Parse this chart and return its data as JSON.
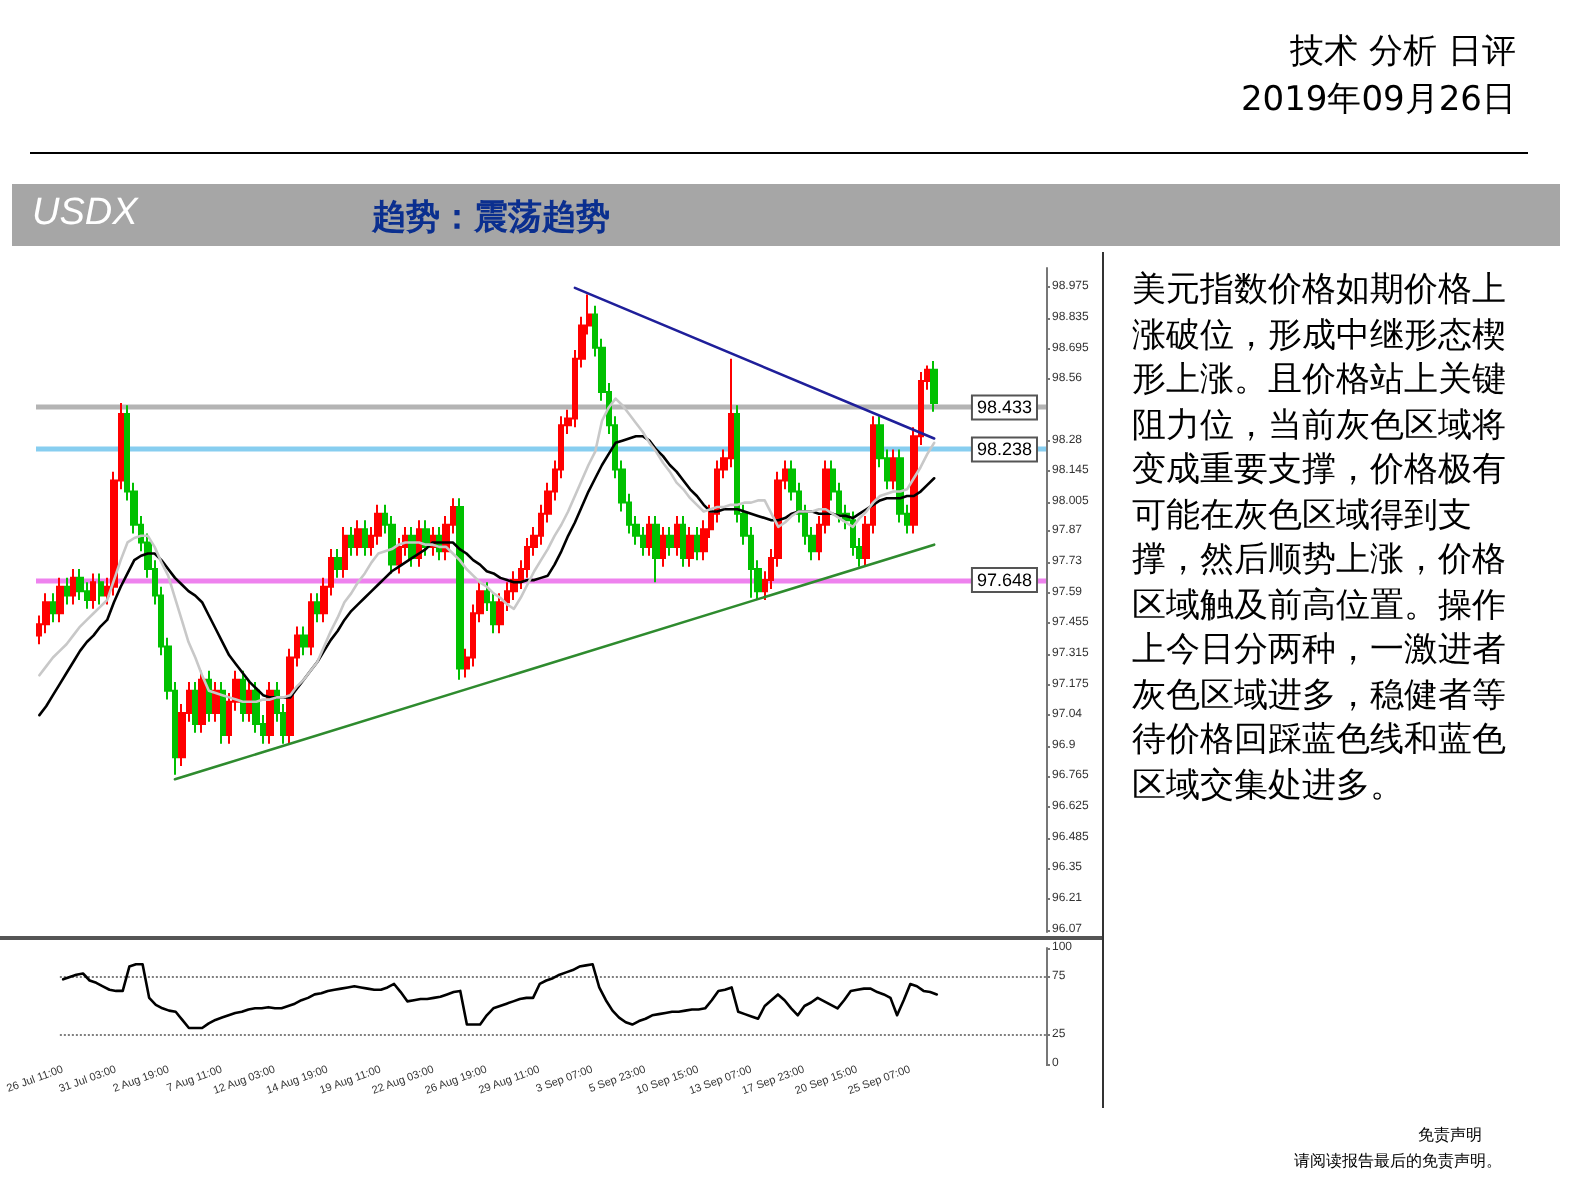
{
  "chart_data": [
    {
      "type": "candlestick",
      "title": "USDX",
      "subtitle": "趋势：震荡趋势",
      "annotations": [
        "技术 分析 日评",
        "2019年09月26日",
        "美元指数价格如期价格上涨破位，形成中继形态楔形上涨。且价格站上关键阻力位，当前灰色区域将变成重要支撑，价格极有可能在灰色区域得到支撑，然后顺势上涨，价格区域触及前高位置。操作上今日分两种，一激进者灰色区域进多，稳健者等待价格回踩蓝色线和蓝色区域交集处进多。",
        "免责声明",
        "请阅读报告最后的免责声明。"
      ],
      "categories": [
        null,
        null,
        null,
        null,
        null,
        null,
        null,
        null,
        null,
        null,
        null,
        null,
        null,
        null,
        null,
        null,
        null,
        null,
        null,
        null,
        null,
        null,
        null,
        null,
        null,
        null,
        null,
        null,
        null,
        null,
        null,
        null,
        null,
        null,
        null,
        null,
        null,
        null,
        null,
        null,
        null,
        null,
        null,
        null,
        null,
        null,
        null,
        null,
        null,
        null,
        null,
        null,
        null,
        null,
        null,
        null,
        null,
        null,
        null,
        null,
        null,
        null,
        null,
        null,
        null,
        null,
        null,
        null,
        null,
        null,
        null,
        null,
        null,
        null,
        null,
        null,
        null,
        null,
        null,
        null,
        null,
        null,
        null,
        null,
        null,
        null,
        null,
        null,
        null,
        null,
        null,
        null,
        null,
        null,
        null,
        null,
        null,
        null,
        null,
        null,
        null,
        null,
        null,
        null,
        null,
        null,
        null,
        null,
        null,
        null,
        null,
        null,
        null,
        null,
        null,
        null,
        null,
        null,
        null,
        null,
        null,
        null,
        null,
        null,
        null,
        null,
        null,
        null,
        null,
        null,
        null,
        null,
        null
      ],
      "ohlc": [
        [
          97.4,
          97.49,
          97.36,
          97.45
        ],
        [
          97.45,
          97.59,
          97.41,
          97.55
        ],
        [
          97.55,
          97.59,
          97.46,
          97.5
        ],
        [
          97.5,
          97.66,
          97.46,
          97.62
        ],
        [
          97.62,
          97.66,
          97.54,
          97.58
        ],
        [
          97.58,
          97.7,
          97.54,
          97.66
        ],
        [
          97.66,
          97.7,
          97.56,
          97.6
        ],
        [
          97.6,
          97.64,
          97.52,
          97.56
        ],
        [
          97.56,
          97.68,
          97.52,
          97.64
        ],
        [
          97.64,
          97.68,
          97.54,
          97.58
        ],
        [
          97.58,
          97.66,
          97.54,
          97.62
        ],
        [
          97.62,
          98.14,
          97.58,
          98.1
        ],
        [
          98.1,
          98.45,
          98.06,
          98.4
        ],
        [
          98.4,
          98.44,
          98.01,
          98.05
        ],
        [
          98.05,
          98.09,
          97.86,
          97.9
        ],
        [
          97.9,
          97.94,
          97.78,
          97.82
        ],
        [
          97.82,
          97.86,
          97.66,
          97.7
        ],
        [
          97.7,
          97.74,
          97.54,
          97.58
        ],
        [
          97.58,
          97.62,
          97.31,
          97.35
        ],
        [
          97.35,
          97.39,
          97.11,
          97.15
        ],
        [
          97.15,
          97.19,
          96.77,
          96.85
        ],
        [
          96.85,
          97.09,
          96.81,
          97.05
        ],
        [
          97.05,
          97.19,
          97.01,
          97.15
        ],
        [
          97.15,
          97.19,
          96.96,
          97.0
        ],
        [
          97.0,
          97.24,
          96.96,
          97.2
        ],
        [
          97.2,
          97.24,
          97.01,
          97.05
        ],
        [
          97.05,
          97.19,
          97.01,
          97.15
        ],
        [
          97.15,
          97.19,
          96.91,
          96.95
        ],
        [
          96.95,
          97.14,
          96.91,
          97.1
        ],
        [
          97.1,
          97.24,
          97.06,
          97.2
        ],
        [
          97.2,
          97.24,
          97.01,
          97.05
        ],
        [
          97.05,
          97.19,
          97.01,
          97.15
        ],
        [
          97.15,
          97.19,
          96.96,
          97.0
        ],
        [
          97.0,
          97.04,
          96.91,
          96.95
        ],
        [
          96.95,
          97.19,
          96.91,
          97.15
        ],
        [
          97.15,
          97.19,
          97.01,
          97.05
        ],
        [
          97.05,
          97.09,
          96.91,
          96.95
        ],
        [
          96.95,
          97.34,
          96.91,
          97.3
        ],
        [
          97.3,
          97.44,
          97.26,
          97.4
        ],
        [
          97.4,
          97.44,
          97.31,
          97.35
        ],
        [
          97.35,
          97.59,
          97.31,
          97.55
        ],
        [
          97.55,
          97.59,
          97.46,
          97.5
        ],
        [
          97.5,
          97.66,
          97.46,
          97.62
        ],
        [
          97.62,
          97.79,
          97.58,
          97.75
        ],
        [
          97.75,
          97.79,
          97.66,
          97.7
        ],
        [
          97.7,
          97.89,
          97.66,
          97.85
        ],
        [
          97.85,
          97.89,
          97.76,
          97.8
        ],
        [
          97.8,
          97.92,
          97.76,
          97.88
        ],
        [
          97.88,
          97.92,
          97.76,
          97.8
        ],
        [
          97.8,
          97.89,
          97.76,
          97.85
        ],
        [
          97.85,
          97.99,
          97.81,
          97.95
        ],
        [
          97.95,
          97.99,
          97.86,
          97.9
        ],
        [
          97.9,
          97.94,
          97.68,
          97.72
        ],
        [
          97.72,
          97.84,
          97.68,
          97.8
        ],
        [
          97.8,
          97.89,
          97.76,
          97.85
        ],
        [
          97.85,
          97.89,
          97.71,
          97.75
        ],
        [
          97.75,
          97.92,
          97.71,
          97.88
        ],
        [
          97.88,
          97.92,
          97.76,
          97.8
        ],
        [
          97.8,
          97.89,
          97.76,
          97.85
        ],
        [
          97.85,
          97.89,
          97.74,
          97.78
        ],
        [
          97.78,
          97.94,
          97.74,
          97.9
        ],
        [
          97.9,
          98.02,
          97.86,
          97.98
        ],
        [
          97.98,
          98.02,
          97.2,
          97.25
        ],
        [
          97.25,
          97.34,
          97.21,
          97.3
        ],
        [
          97.3,
          97.54,
          97.26,
          97.5
        ],
        [
          97.5,
          97.64,
          97.46,
          97.6
        ],
        [
          97.6,
          97.64,
          97.51,
          97.55
        ],
        [
          97.55,
          97.59,
          97.41,
          97.45
        ],
        [
          97.45,
          97.59,
          97.41,
          97.55
        ],
        [
          97.55,
          97.64,
          97.51,
          97.6
        ],
        [
          97.6,
          97.69,
          97.56,
          97.65
        ],
        [
          97.65,
          97.74,
          97.61,
          97.7
        ],
        [
          97.7,
          97.84,
          97.66,
          97.8
        ],
        [
          97.8,
          97.89,
          97.76,
          97.85
        ],
        [
          97.85,
          97.99,
          97.81,
          97.95
        ],
        [
          97.95,
          98.09,
          97.91,
          98.05
        ],
        [
          98.05,
          98.19,
          98.01,
          98.15
        ],
        [
          98.15,
          98.39,
          98.11,
          98.35
        ],
        [
          98.35,
          98.42,
          98.31,
          98.38
        ],
        [
          98.38,
          98.69,
          98.34,
          98.65
        ],
        [
          98.65,
          98.84,
          98.61,
          98.8
        ],
        [
          98.8,
          98.94,
          98.76,
          98.85
        ],
        [
          98.85,
          98.89,
          98.66,
          98.7
        ],
        [
          98.7,
          98.74,
          98.46,
          98.5
        ],
        [
          98.5,
          98.54,
          98.31,
          98.35
        ],
        [
          98.35,
          98.39,
          98.11,
          98.15
        ],
        [
          98.15,
          98.19,
          97.96,
          98.0
        ],
        [
          98.0,
          98.04,
          97.86,
          97.9
        ],
        [
          97.9,
          97.94,
          97.81,
          97.85
        ],
        [
          97.85,
          97.89,
          97.76,
          97.8
        ],
        [
          97.8,
          97.94,
          97.76,
          97.9
        ],
        [
          97.9,
          97.94,
          97.64,
          97.75
        ],
        [
          97.75,
          97.89,
          97.71,
          97.85
        ],
        [
          97.85,
          97.89,
          97.76,
          97.8
        ],
        [
          97.8,
          97.94,
          97.76,
          97.9
        ],
        [
          97.9,
          97.94,
          97.71,
          97.75
        ],
        [
          97.75,
          97.89,
          97.71,
          97.85
        ],
        [
          97.85,
          97.89,
          97.74,
          97.78
        ],
        [
          97.78,
          97.92,
          97.74,
          97.88
        ],
        [
          97.88,
          97.99,
          97.84,
          97.95
        ],
        [
          97.95,
          98.19,
          97.91,
          98.15
        ],
        [
          98.15,
          98.24,
          98.11,
          98.2
        ],
        [
          98.2,
          98.65,
          98.16,
          98.4
        ],
        [
          98.4,
          98.44,
          97.91,
          97.95
        ],
        [
          97.95,
          97.99,
          97.81,
          97.85
        ],
        [
          97.85,
          97.89,
          97.57,
          97.7
        ],
        [
          97.7,
          97.74,
          97.56,
          97.6
        ],
        [
          97.6,
          97.69,
          97.56,
          97.65
        ],
        [
          97.65,
          97.79,
          97.61,
          97.75
        ],
        [
          97.75,
          98.14,
          97.71,
          98.1
        ],
        [
          98.1,
          98.19,
          98.06,
          98.15
        ],
        [
          98.15,
          98.19,
          98.01,
          98.05
        ],
        [
          98.05,
          98.09,
          97.91,
          97.95
        ],
        [
          97.95,
          97.99,
          97.81,
          97.85
        ],
        [
          97.85,
          97.89,
          97.74,
          97.78
        ],
        [
          97.78,
          97.94,
          97.74,
          97.9
        ],
        [
          97.9,
          98.19,
          97.86,
          98.15
        ],
        [
          98.15,
          98.19,
          98.01,
          98.05
        ],
        [
          98.05,
          98.09,
          97.91,
          97.95
        ],
        [
          97.95,
          97.99,
          97.88,
          97.92
        ],
        [
          97.92,
          97.96,
          97.76,
          97.8
        ],
        [
          97.8,
          97.84,
          97.71,
          97.75
        ],
        [
          97.75,
          97.94,
          97.71,
          97.9
        ],
        [
          97.9,
          98.39,
          97.86,
          98.35
        ],
        [
          98.35,
          98.39,
          98.16,
          98.2
        ],
        [
          98.2,
          98.24,
          98.06,
          98.1
        ],
        [
          98.1,
          98.24,
          98.06,
          98.2
        ],
        [
          98.2,
          98.24,
          97.91,
          97.95
        ],
        [
          97.95,
          97.99,
          97.86,
          97.9
        ],
        [
          97.9,
          98.34,
          97.86,
          98.3
        ],
        [
          98.3,
          98.59,
          98.26,
          98.55
        ],
        [
          98.55,
          98.62,
          98.51,
          98.6
        ],
        [
          98.6,
          98.64,
          98.41,
          98.45
        ]
      ],
      "colors": [
        "#ff0000",
        "#ff0000",
        "#00c000",
        "#ff0000",
        "#00c000",
        "#ff0000",
        "#00c000",
        "#00c000",
        "#ff0000",
        "#00c000",
        "#ff0000",
        "#ff0000",
        "#ff0000",
        "#00c000",
        "#00c000",
        "#00c000",
        "#00c000",
        "#00c000",
        "#00c000",
        "#00c000",
        "#00c000",
        "#ff0000",
        "#ff0000",
        "#00c000",
        "#ff0000",
        "#00c000",
        "#ff0000",
        "#00c000",
        "#ff0000",
        "#ff0000",
        "#00c000",
        "#ff0000",
        "#00c000",
        "#00c000",
        "#ff0000",
        "#00c000",
        "#00c000",
        "#ff0000",
        "#ff0000",
        "#00c000",
        "#ff0000",
        "#00c000",
        "#ff0000",
        "#ff0000",
        "#00c000",
        "#ff0000",
        "#00c000",
        "#ff0000",
        "#00c000",
        "#ff0000",
        "#ff0000",
        "#00c000",
        "#00c000",
        "#ff0000",
        "#ff0000",
        "#00c000",
        "#ff0000",
        "#00c000",
        "#ff0000",
        "#00c000",
        "#ff0000",
        "#ff0000",
        "#00c000",
        "#ff0000",
        "#ff0000",
        "#ff0000",
        "#00c000",
        "#00c000",
        "#ff0000",
        "#ff0000",
        "#ff0000",
        "#ff0000",
        "#ff0000",
        "#ff0000",
        "#ff0000",
        "#ff0000",
        "#ff0000",
        "#ff0000",
        "#ff0000",
        "#ff0000",
        "#ff0000",
        "#ff0000",
        "#00c000",
        "#00c000",
        "#00c000",
        "#00c000",
        "#00c000",
        "#00c000",
        "#00c000",
        "#00c000",
        "#ff0000",
        "#00c000",
        "#ff0000",
        "#00c000",
        "#ff0000",
        "#00c000",
        "#ff0000",
        "#00c000",
        "#ff0000",
        "#ff0000",
        "#ff0000",
        "#ff0000",
        "#ff0000",
        "#00c000",
        "#00c000",
        "#00c000",
        "#00c000",
        "#ff0000",
        "#ff0000",
        "#ff0000",
        "#ff0000",
        "#00c000",
        "#00c000",
        "#00c000",
        "#00c000",
        "#ff0000",
        "#ff0000",
        "#00c000",
        "#00c000",
        "#00c000",
        "#00c000",
        "#00c000",
        "#ff0000",
        "#ff0000",
        "#00c000",
        "#00c000",
        "#ff0000",
        "#00c000",
        "#00c000",
        "#ff0000",
        "#ff0000",
        "#ff0000",
        "#00c000"
      ],
      "series": [
        {
          "type": "line",
          "color": "#000000",
          "values": [
            97.04,
            97.08,
            97.13,
            97.18,
            97.23,
            97.28,
            97.33,
            97.37,
            97.4,
            97.44,
            97.47,
            97.55,
            97.62,
            97.68,
            97.74,
            97.76,
            97.77,
            97.77,
            97.74,
            97.7,
            97.66,
            97.63,
            97.6,
            97.58,
            97.55,
            97.49,
            97.43,
            97.37,
            97.31,
            97.27,
            97.23,
            97.19,
            97.16,
            97.13,
            97.12,
            97.12,
            97.12,
            97.12,
            97.16,
            97.2,
            97.24,
            97.28,
            97.33,
            97.38,
            97.42,
            97.47,
            97.51,
            97.54,
            97.57,
            97.6,
            97.63,
            97.66,
            97.69,
            97.71,
            97.73,
            97.75,
            97.77,
            97.79,
            97.82,
            97.82,
            97.82,
            97.82,
            97.79,
            97.77,
            97.74,
            97.72,
            97.69,
            97.68,
            97.66,
            97.65,
            97.64,
            97.64,
            97.65,
            97.65,
            97.66,
            97.67,
            97.72,
            97.78,
            97.85,
            97.91,
            97.98,
            98.05,
            98.11,
            98.17,
            98.22,
            98.27,
            98.28,
            98.29,
            98.3,
            98.3,
            98.28,
            98.24,
            98.21,
            98.17,
            98.14,
            98.1,
            98.06,
            98.03,
            97.99,
            97.96,
            97.96,
            97.97,
            97.97,
            97.97,
            97.96,
            97.95,
            97.94,
            97.93,
            97.92,
            97.92,
            97.93,
            97.95,
            97.96,
            97.96,
            97.96,
            97.95,
            97.95,
            97.95,
            97.94,
            97.94,
            97.93,
            97.95,
            97.97,
            97.99,
            98.01,
            98.02,
            98.02,
            98.02,
            98.03,
            98.03,
            98.05,
            98.08,
            98.11
          ]
        },
        {
          "type": "line",
          "color": "#c8c8c8",
          "values": [
            97.22,
            97.26,
            97.3,
            97.33,
            97.36,
            97.4,
            97.44,
            97.47,
            97.5,
            97.53,
            97.56,
            97.65,
            97.74,
            97.82,
            97.84,
            97.85,
            97.85,
            97.8,
            97.73,
            97.67,
            97.57,
            97.47,
            97.37,
            97.3,
            97.22,
            97.15,
            97.14,
            97.13,
            97.12,
            97.11,
            97.1,
            97.1,
            97.1,
            97.11,
            97.11,
            97.12,
            97.12,
            97.13,
            97.17,
            97.2,
            97.24,
            97.28,
            97.35,
            97.42,
            97.48,
            97.55,
            97.59,
            97.64,
            97.68,
            97.73,
            97.77,
            97.78,
            97.79,
            97.81,
            97.82,
            97.82,
            97.82,
            97.81,
            97.81,
            97.8,
            97.8,
            97.77,
            97.74,
            97.7,
            97.67,
            97.64,
            97.62,
            97.59,
            97.57,
            97.54,
            97.52,
            97.57,
            97.63,
            97.69,
            97.74,
            97.79,
            97.85,
            97.9,
            97.96,
            98.03,
            98.1,
            98.17,
            98.23,
            98.37,
            98.43,
            98.47,
            98.44,
            98.4,
            98.36,
            98.32,
            98.27,
            98.23,
            98.18,
            98.14,
            98.09,
            98.06,
            98.02,
            97.99,
            97.96,
            97.97,
            97.98,
            97.98,
            97.99,
            97.99,
            98.0,
            98.0,
            98.01,
            98.01,
            97.95,
            97.89,
            97.91,
            97.94,
            97.96,
            97.96,
            97.96,
            97.97,
            97.97,
            97.95,
            97.93,
            97.91,
            97.89,
            97.93,
            97.96,
            98.0,
            98.03,
            98.04,
            98.05,
            98.05,
            98.06,
            98.11,
            98.16,
            98.22,
            98.27
          ]
        },
        {
          "type": "line",
          "color": "#1f1f9a",
          "values": [
            null,
            null,
            null,
            null,
            null,
            null,
            null,
            null,
            null,
            null,
            null,
            null,
            null,
            null,
            null,
            null,
            null,
            null,
            null,
            null,
            null,
            null,
            null,
            null,
            null,
            null,
            null,
            null,
            null,
            null,
            null,
            null,
            null,
            null,
            null,
            null,
            null,
            null,
            null,
            null,
            null,
            null,
            null,
            null,
            null,
            null,
            null,
            null,
            null,
            null,
            null,
            null,
            null,
            null,
            null,
            null,
            null,
            null,
            null,
            null,
            null,
            null,
            null,
            null,
            null,
            null,
            null,
            null,
            null,
            null,
            null,
            null,
            null,
            null,
            null,
            null,
            null,
            null,
            null,
            98.97,
            null,
            null,
            null,
            null,
            null,
            null,
            null,
            null,
            null,
            null,
            null,
            null,
            null,
            null,
            null,
            null,
            null,
            null,
            null,
            null,
            null,
            null,
            null,
            null,
            null,
            null,
            null,
            null,
            null,
            null,
            null,
            null,
            null,
            null,
            null,
            null,
            null,
            null,
            null,
            null,
            null,
            null,
            null,
            null,
            null,
            null,
            null,
            null,
            null,
            null,
            null,
            null,
            98.29
          ]
        },
        {
          "type": "line",
          "color": "#2e8b2e",
          "values": [
            null,
            null,
            null,
            null,
            null,
            null,
            null,
            null,
            null,
            null,
            null,
            null,
            null,
            null,
            null,
            null,
            null,
            null,
            null,
            null,
            96.75,
            null,
            null,
            null,
            null,
            null,
            null,
            null,
            null,
            null,
            null,
            null,
            null,
            null,
            null,
            null,
            null,
            null,
            null,
            null,
            null,
            null,
            null,
            null,
            null,
            null,
            null,
            null,
            null,
            null,
            null,
            null,
            null,
            null,
            null,
            null,
            null,
            null,
            null,
            null,
            null,
            null,
            null,
            null,
            null,
            null,
            null,
            null,
            null,
            null,
            null,
            null,
            null,
            null,
            null,
            null,
            null,
            null,
            null,
            null,
            null,
            null,
            null,
            null,
            null,
            null,
            null,
            null,
            null,
            null,
            null,
            null,
            null,
            null,
            null,
            null,
            null,
            null,
            null,
            null,
            null,
            null,
            null,
            null,
            null,
            null,
            null,
            null,
            null,
            null,
            null,
            null,
            null,
            null,
            null,
            null,
            null,
            null,
            null,
            null,
            null,
            null,
            null,
            null,
            null,
            null,
            null,
            null,
            null,
            null,
            null,
            null,
            97.81
          ]
        }
      ],
      "ref_lines": [
        {
          "axis": "y",
          "value": 98.433,
          "label": "98.433",
          "color": "#b4b4b4"
        },
        {
          "axis": "y",
          "value": 98.238,
          "label": "98.238",
          "color": "#87cef0"
        },
        {
          "axis": "y",
          "value": 97.648,
          "label": "97.648",
          "color": "#ee82ee"
        }
      ],
      "ylim": [
        96.06,
        99.06
      ],
      "yticks": [
        96.07,
        96.21,
        96.35,
        96.485,
        96.625,
        96.765,
        96.9,
        97.04,
        97.175,
        97.315,
        97.455,
        97.59,
        97.73,
        97.87,
        98.005,
        98.145,
        98.28,
        98.56,
        98.695,
        98.835,
        98.975
      ],
      "tick_labels": "y",
      "grid": false,
      "marker": "none"
    },
    {
      "type": "line",
      "color": "#000000",
      "marker": "none",
      "grid": false,
      "categories": [
        "26 Jul 11:00",
        null,
        null,
        null,
        null,
        null,
        null,
        null,
        "31 Jul 03:00",
        null,
        null,
        null,
        null,
        null,
        null,
        null,
        "2 Aug 19:00",
        null,
        null,
        null,
        null,
        null,
        null,
        null,
        "7 Aug 11:00",
        null,
        null,
        null,
        null,
        null,
        null,
        null,
        "12 Aug 03:00",
        null,
        null,
        null,
        null,
        null,
        null,
        null,
        "14 Aug 19:00",
        null,
        null,
        null,
        null,
        null,
        null,
        null,
        "19 Aug 11:00",
        null,
        null,
        null,
        null,
        null,
        null,
        null,
        "22 Aug 03:00",
        null,
        null,
        null,
        null,
        null,
        null,
        null,
        "26 Aug 19:00",
        null,
        null,
        null,
        null,
        null,
        null,
        null,
        "29 Aug 11:00",
        null,
        null,
        null,
        null,
        null,
        null,
        null,
        "3 Sep 07:00",
        null,
        null,
        null,
        null,
        null,
        null,
        null,
        "5 Sep 23:00",
        null,
        null,
        null,
        null,
        null,
        null,
        null,
        "10 Sep 15:00",
        null,
        null,
        null,
        null,
        null,
        null,
        null,
        "13 Sep 07:00",
        null,
        null,
        null,
        null,
        null,
        null,
        null,
        "17 Sep 23:00",
        null,
        null,
        null,
        null,
        null,
        null,
        null,
        "20 Sep 15:00",
        null,
        null,
        null,
        null,
        null,
        null,
        null,
        "25 Sep 07:00",
        null,
        null,
        null,
        null
      ],
      "values": [
        73,
        75,
        77,
        78,
        72,
        70,
        67,
        64,
        63,
        63,
        84,
        86,
        86,
        57,
        51,
        48,
        46,
        45,
        38,
        31,
        31,
        31,
        35,
        38,
        40,
        42,
        44,
        45,
        47,
        48,
        48,
        49,
        48,
        48,
        50,
        52,
        55,
        57,
        60,
        61,
        63,
        64,
        65,
        66,
        67,
        66,
        65,
        64,
        64,
        66,
        69,
        62,
        54,
        55,
        56,
        56,
        57,
        58,
        60,
        62,
        63,
        34,
        34,
        34,
        42,
        48,
        50,
        52,
        54,
        56,
        57,
        57,
        69,
        72,
        74,
        77,
        79,
        81,
        84,
        85,
        86,
        66,
        55,
        46,
        40,
        36,
        34,
        37,
        39,
        42,
        43,
        44,
        45,
        45,
        46,
        47,
        47,
        48,
        55,
        63,
        64,
        66,
        45,
        43,
        41,
        39,
        50,
        55,
        60,
        55,
        48,
        42,
        50,
        53,
        57,
        54,
        51,
        48,
        55,
        63,
        64,
        65,
        65,
        62,
        60,
        57,
        42,
        55,
        69,
        67,
        63,
        62,
        60
      ],
      "ylim": [
        0,
        100
      ],
      "yticks": [
        0,
        25,
        75,
        100
      ],
      "ref_lines": [
        {
          "axis": "y",
          "value": 25,
          "color": "#808080",
          "line_style": "dotted"
        },
        {
          "axis": "y",
          "value": 75,
          "color": "#808080",
          "line_style": "dotted"
        }
      ]
    }
  ]
}
